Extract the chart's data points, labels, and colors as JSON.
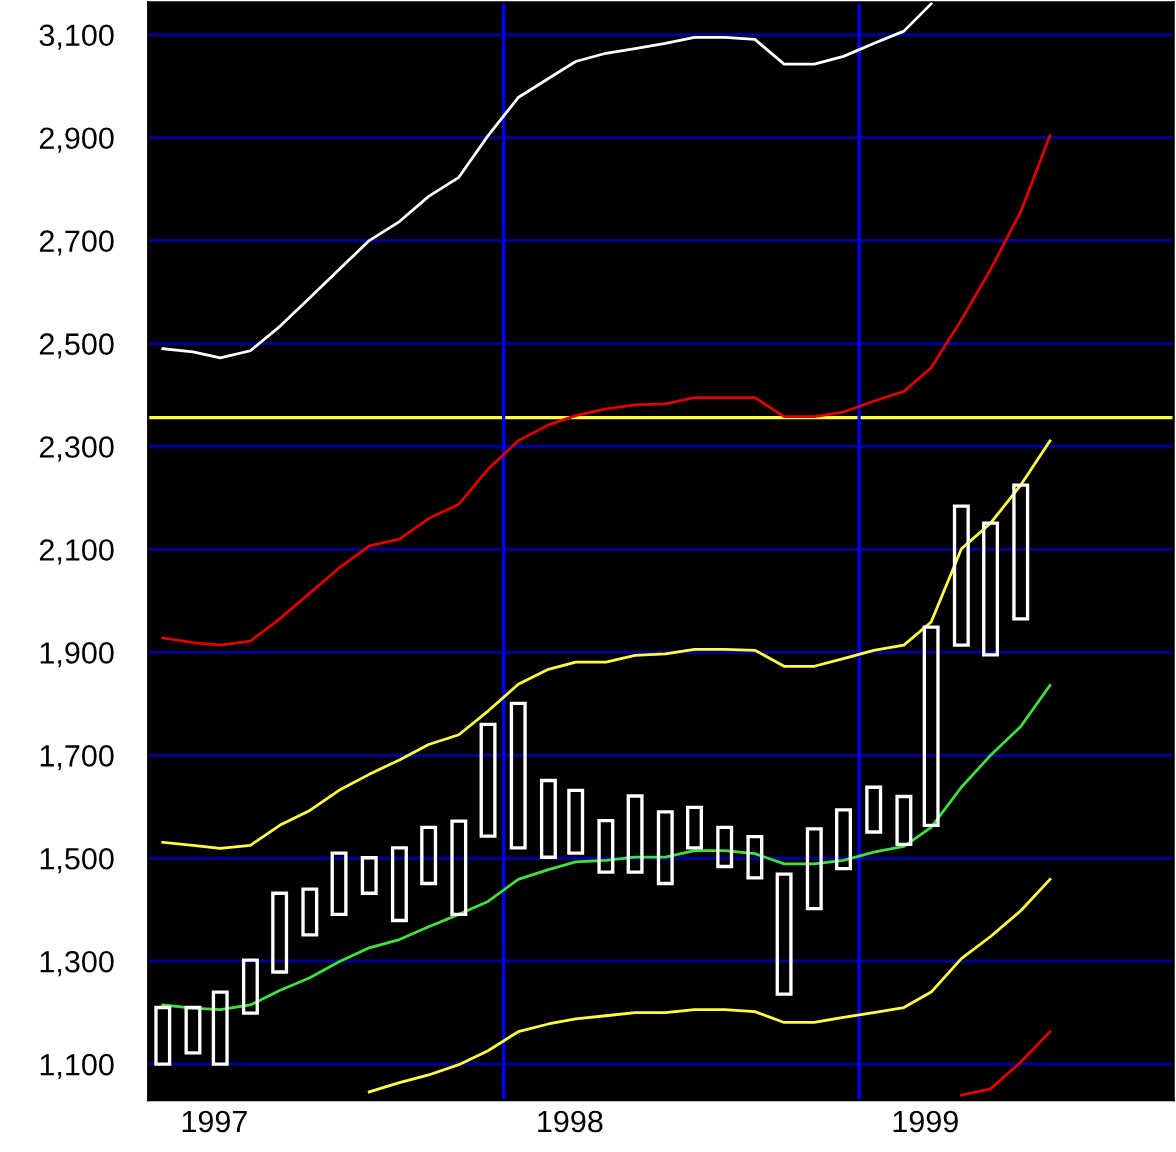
{
  "chart_data": {
    "type": "candlestick",
    "x": [
      "1997-01-16",
      "1997-02-16",
      "1997-03-16",
      "1997-04-16",
      "1997-05-16",
      "1997-06-16",
      "1997-07-16",
      "1997-08-16",
      "1997-09-16",
      "1997-10-16",
      "1997-11-16",
      "1997-12-16",
      "1998-01-16",
      "1998-02-16",
      "1998-03-16",
      "1998-04-16",
      "1998-05-16",
      "1998-06-16",
      "1998-07-16",
      "1998-08-16",
      "1998-09-16",
      "1998-10-16",
      "1998-11-16",
      "1998-12-16",
      "1999-01-16",
      "1999-02-16",
      "1999-03-16",
      "1999-04-16",
      "1999-05-16",
      "1999-06-16"
    ],
    "ohlc": [
      [
        1100,
        1210,
        1100,
        1210
      ],
      [
        1122,
        1210,
        1122,
        1210
      ],
      [
        1100,
        1240,
        1100,
        1240
      ],
      [
        1199,
        1302,
        1199,
        1302
      ],
      [
        1279,
        1432,
        1279,
        1432
      ],
      [
        1351,
        1440,
        1351,
        1440
      ],
      [
        1391,
        1510,
        1391,
        1510
      ],
      [
        1432,
        1501,
        1432,
        1501
      ],
      [
        1379,
        1520,
        1379,
        1520
      ],
      [
        1451,
        1560,
        1451,
        1560
      ],
      [
        1391,
        1572,
        1391,
        1572
      ],
      [
        1543,
        1760,
        1543,
        1760
      ],
      [
        1520,
        1801,
        1520,
        1801
      ],
      [
        1502,
        1651,
        1502,
        1651
      ],
      [
        1510,
        1632,
        1510,
        1632
      ],
      [
        1473,
        1573,
        1473,
        1573
      ],
      [
        1473,
        1621,
        1473,
        1621
      ],
      [
        1451,
        1590,
        1451,
        1590
      ],
      [
        1520,
        1599,
        1520,
        1599
      ],
      [
        1484,
        1560,
        1484,
        1560
      ],
      [
        1462,
        1542,
        1462,
        1542
      ],
      [
        1236,
        1469,
        1236,
        1469
      ],
      [
        1402,
        1557,
        1402,
        1557
      ],
      [
        1480,
        1594,
        1480,
        1594
      ],
      [
        1551,
        1638,
        1551,
        1638
      ],
      [
        1527,
        1620,
        1527,
        1620
      ],
      [
        1564,
        1949,
        1564,
        1949
      ],
      [
        1914,
        2184,
        1914,
        2184
      ],
      [
        1895,
        2151,
        1895,
        2151
      ],
      [
        1965,
        2225,
        1965,
        2225
      ]
    ],
    "color": "#ffffff",
    "series": [
      {
        "type": "line",
        "color": "#ffffff",
        "x": [
          "1997-01-16",
          "1997-02-16",
          "1997-03-16",
          "1997-04-16",
          "1997-05-16",
          "1997-06-16",
          "1997-07-16",
          "1997-08-16",
          "1997-09-16",
          "1997-10-16",
          "1997-11-16",
          "1997-12-16",
          "1998-01-16",
          "1998-02-16",
          "1998-03-16",
          "1998-04-16",
          "1998-05-16",
          "1998-06-16",
          "1998-07-16",
          "1998-08-16",
          "1998-09-16",
          "1998-10-16",
          "1998-11-16",
          "1998-12-16",
          "1999-01-16",
          "1999-02-16",
          "1999-03-16"
        ],
        "values": [
          2490,
          2484,
          2472,
          2486,
          2533,
          2589,
          2644,
          2700,
          2737,
          2786,
          2823,
          2904,
          2978,
          3015,
          3048,
          3064,
          3073,
          3083,
          3095,
          3095,
          3091,
          3043,
          3043,
          3058,
          3083,
          3107,
          3160
        ]
      },
      {
        "type": "line",
        "color": "#e00000",
        "x": [
          "1997-01-16",
          "1997-02-16",
          "1997-03-16",
          "1997-04-16",
          "1997-05-16",
          "1997-06-16",
          "1997-07-16",
          "1997-08-16",
          "1997-09-16",
          "1997-10-16",
          "1997-11-16",
          "1997-12-16",
          "1998-01-16",
          "1998-02-16",
          "1998-03-16",
          "1998-04-16",
          "1998-05-16",
          "1998-06-16",
          "1998-07-16",
          "1998-08-16",
          "1998-09-16",
          "1998-10-16",
          "1998-11-16",
          "1998-12-16",
          "1999-01-16",
          "1999-02-16",
          "1999-03-16",
          "1999-04-16",
          "1999-05-16",
          "1999-06-16",
          "1999-07-16"
        ],
        "values": [
          1928,
          1919,
          1914,
          1922,
          1965,
          2015,
          2064,
          2107,
          2120,
          2160,
          2188,
          2256,
          2311,
          2342,
          2360,
          2373,
          2381,
          2383,
          2395,
          2395,
          2395,
          2358,
          2358,
          2367,
          2388,
          2407,
          2453,
          2546,
          2644,
          2756,
          2904
        ]
      },
      {
        "type": "line",
        "color": "#ffff40",
        "x": [
          "1997-01-16",
          "1997-02-16",
          "1997-03-16",
          "1997-04-16",
          "1997-05-16",
          "1997-06-16",
          "1997-07-16",
          "1997-08-16",
          "1997-09-16",
          "1997-10-16",
          "1997-11-16",
          "1997-12-16",
          "1998-01-16",
          "1998-02-16",
          "1998-03-16",
          "1998-04-16",
          "1998-05-16",
          "1998-06-16",
          "1998-07-16",
          "1998-08-16",
          "1998-09-16",
          "1998-10-16",
          "1998-11-16",
          "1998-12-16",
          "1999-01-16",
          "1999-02-16",
          "1999-03-16",
          "1999-04-16",
          "1999-05-16",
          "1999-06-16",
          "1999-07-16"
        ],
        "values": [
          1531,
          1525,
          1519,
          1525,
          1564,
          1593,
          1632,
          1663,
          1691,
          1721,
          1740,
          1786,
          1838,
          1867,
          1881,
          1881,
          1894,
          1897,
          1906,
          1906,
          1904,
          1873,
          1873,
          1888,
          1904,
          1914,
          1959,
          2101,
          2151,
          2225,
          2311
        ]
      },
      {
        "type": "line",
        "color": "#40e040",
        "x": [
          "1997-01-16",
          "1997-02-16",
          "1997-03-16",
          "1997-04-16",
          "1997-05-16",
          "1997-06-16",
          "1997-07-16",
          "1997-08-16",
          "1997-09-16",
          "1997-10-16",
          "1997-11-16",
          "1997-12-16",
          "1998-01-16",
          "1998-02-16",
          "1998-03-16",
          "1998-04-16",
          "1998-05-16",
          "1998-06-16",
          "1998-07-16",
          "1998-08-16",
          "1998-09-16",
          "1998-10-16",
          "1998-11-16",
          "1998-12-16",
          "1999-01-16",
          "1999-02-16",
          "1999-03-16",
          "1999-04-16",
          "1999-05-16",
          "1999-06-16",
          "1999-07-16"
        ],
        "values": [
          1215,
          1209,
          1206,
          1215,
          1243,
          1268,
          1299,
          1326,
          1342,
          1367,
          1391,
          1416,
          1459,
          1478,
          1493,
          1496,
          1502,
          1502,
          1515,
          1515,
          1509,
          1489,
          1489,
          1496,
          1512,
          1523,
          1560,
          1638,
          1700,
          1756,
          1836
        ]
      },
      {
        "type": "line",
        "color": "#ffff40",
        "x": [
          "1997-08-16",
          "1997-09-16",
          "1997-10-16",
          "1997-11-16",
          "1997-12-16",
          "1998-01-16",
          "1998-02-16",
          "1998-03-16",
          "1998-04-16",
          "1998-05-16",
          "1998-06-16",
          "1998-07-16",
          "1998-08-16",
          "1998-09-16",
          "1998-10-16",
          "1998-11-16",
          "1998-12-16",
          "1999-01-16",
          "1999-02-16",
          "1999-03-16",
          "1999-04-16",
          "1999-05-16",
          "1999-06-16",
          "1999-07-16"
        ],
        "values": [
          1046,
          1064,
          1079,
          1099,
          1126,
          1163,
          1178,
          1188,
          1194,
          1200,
          1200,
          1206,
          1206,
          1202,
          1181,
          1181,
          1191,
          1200,
          1210,
          1240,
          1305,
          1348,
          1398,
          1459
        ]
      },
      {
        "type": "line",
        "color": "#e00000",
        "x": [
          "1999-04-16",
          "1999-05-16",
          "1999-06-16",
          "1999-07-16"
        ],
        "values": [
          1040,
          1052,
          1104,
          1163
        ]
      }
    ],
    "xlim": [
      "1997-01-01",
      "1999-11-20"
    ],
    "xticks": [
      {
        "value": "1997-03-10",
        "label": "1997"
      },
      {
        "value": "1998-03-10",
        "label": "1998"
      },
      {
        "value": "1999-03-10",
        "label": "1999"
      }
    ],
    "ylim": [
      1030,
      3163
    ],
    "yticks": [
      {
        "value": 1100,
        "label": "1,100"
      },
      {
        "value": 1300,
        "label": "1,300"
      },
      {
        "value": 1500,
        "label": "1,500"
      },
      {
        "value": 1700,
        "label": "1,700"
      },
      {
        "value": 1900,
        "label": "1,900"
      },
      {
        "value": 2100,
        "label": "2,100"
      },
      {
        "value": 2300,
        "label": "2,300"
      },
      {
        "value": 2500,
        "label": "2,500"
      },
      {
        "value": 2700,
        "label": "2,700"
      },
      {
        "value": 2900,
        "label": "2,900"
      },
      {
        "value": 3100,
        "label": "3,100"
      }
    ],
    "grid": "y",
    "ref_lines": [
      {
        "axis": "y",
        "value": 2356,
        "color": "#ffff40"
      },
      {
        "axis": "x",
        "value": "1998-01-01",
        "color": "#0000ff"
      },
      {
        "axis": "x",
        "value": "1999-01-01",
        "color": "#0000ff"
      }
    ]
  }
}
